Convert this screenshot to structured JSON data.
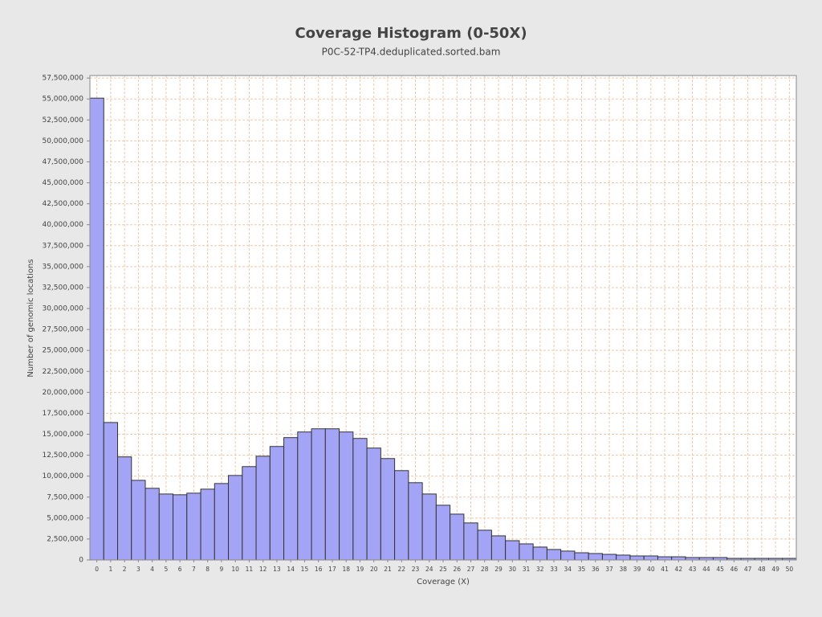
{
  "chart_data": {
    "type": "bar",
    "title": "Coverage Histogram (0-50X)",
    "subtitle": "P0C-52-TP4.deduplicated.sorted.bam",
    "x_label": "Coverage (X)",
    "y_label": "Number of genomic locations",
    "categories": [
      "0",
      "1",
      "2",
      "3",
      "4",
      "5",
      "6",
      "7",
      "8",
      "9",
      "10",
      "11",
      "12",
      "13",
      "14",
      "15",
      "16",
      "17",
      "18",
      "19",
      "20",
      "21",
      "22",
      "23",
      "24",
      "25",
      "26",
      "27",
      "28",
      "29",
      "30",
      "31",
      "32",
      "33",
      "34",
      "35",
      "36",
      "37",
      "38",
      "39",
      "40",
      "41",
      "42",
      "43",
      "44",
      "45",
      "46",
      "47",
      "48",
      "49",
      "50"
    ],
    "values": [
      55100000,
      16400000,
      12300000,
      9500000,
      8550000,
      7870000,
      7780000,
      7970000,
      8450000,
      9120000,
      10080000,
      11140000,
      12380000,
      13540000,
      14600000,
      15270000,
      15650000,
      15650000,
      15270000,
      14500000,
      13350000,
      12100000,
      10660000,
      9220000,
      7870000,
      6530000,
      5470000,
      4420000,
      3550000,
      2880000,
      2300000,
      1920000,
      1540000,
      1250000,
      1060000,
      860000,
      770000,
      670000,
      580000,
      480000,
      480000,
      380000,
      380000,
      290000,
      290000,
      290000,
      190000,
      190000,
      190000,
      190000,
      190000
    ],
    "color": "#a4a4f6",
    "ylim": [
      0,
      57800000
    ],
    "yticks": [
      0,
      {
        "value": 2500000,
        "label": "2,500,000"
      },
      {
        "value": 5000000,
        "label": "5,000,000"
      },
      {
        "value": 7500000,
        "label": "7,500,000"
      },
      {
        "value": 10000000,
        "label": "10,000,000"
      },
      {
        "value": 12500000,
        "label": "12,500,000"
      },
      {
        "value": 15000000,
        "label": "15,000,000"
      },
      {
        "value": 17500000,
        "label": "17,500,000"
      },
      {
        "value": 20000000,
        "label": "20,000,000"
      },
      {
        "value": 22500000,
        "label": "22,500,000"
      },
      {
        "value": 25000000,
        "label": "25,000,000"
      },
      {
        "value": 27500000,
        "label": "27,500,000"
      },
      {
        "value": 30000000,
        "label": "30,000,000"
      },
      {
        "value": 32500000,
        "label": "32,500,000"
      },
      {
        "value": 35000000,
        "label": "35,000,000"
      },
      {
        "value": 37500000,
        "label": "37,500,000"
      },
      {
        "value": 40000000,
        "label": "40,000,000"
      },
      {
        "value": 42500000,
        "label": "42,500,000"
      },
      {
        "value": 45000000,
        "label": "45,000,000"
      },
      {
        "value": 47500000,
        "label": "47,500,000"
      },
      {
        "value": 50000000,
        "label": "50,000,000"
      },
      {
        "value": 52500000,
        "label": "52,500,000"
      },
      {
        "value": 55000000,
        "label": "55,000,000"
      },
      {
        "value": 57500000,
        "label": "57,500,000"
      }
    ],
    "grid": true
  }
}
